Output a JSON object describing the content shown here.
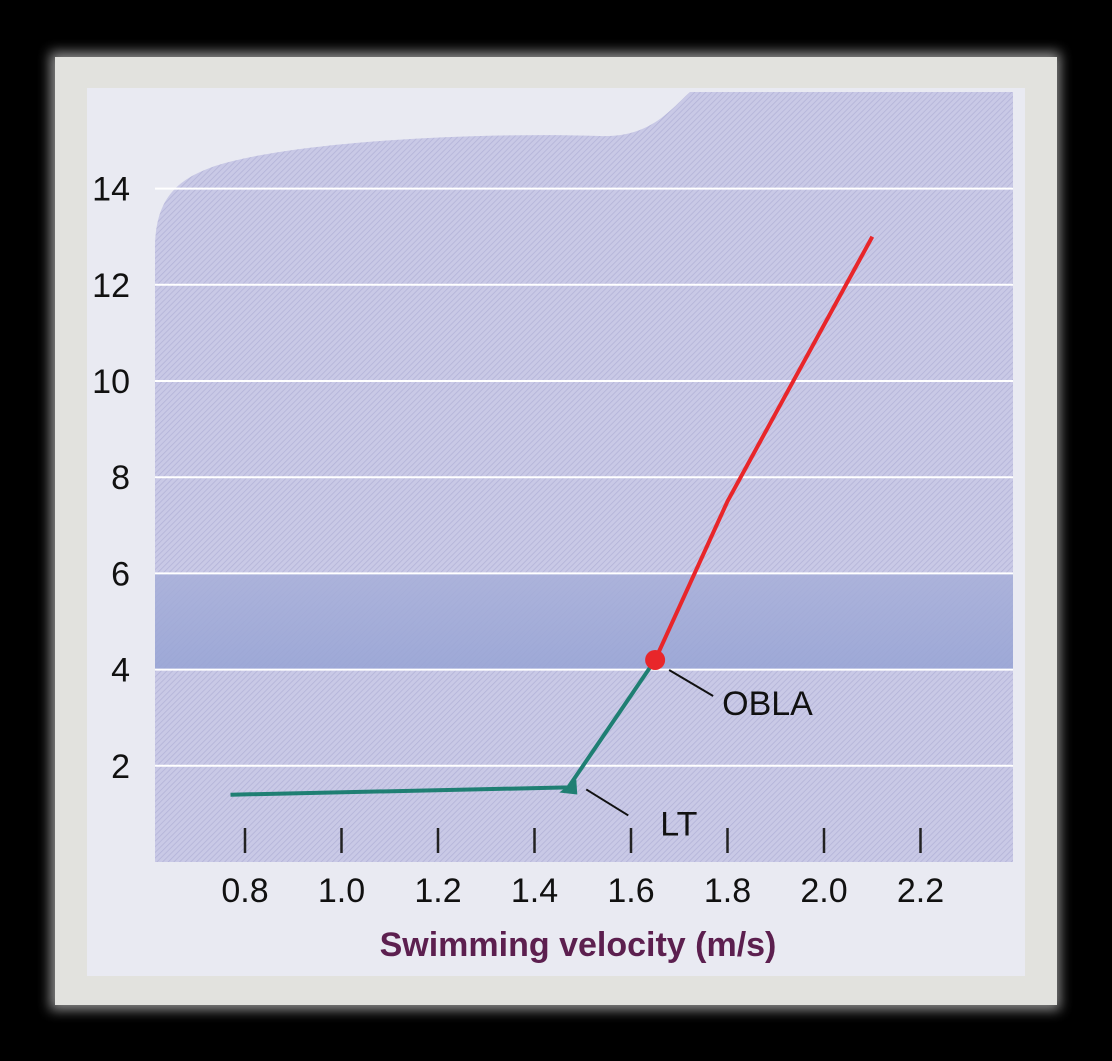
{
  "chart_data": {
    "type": "line",
    "title": "",
    "xlabel": "Swimming velocity (m/s)",
    "ylabel": "",
    "xlim": [
      0.72,
      2.3
    ],
    "ylim": [
      0,
      15
    ],
    "x_ticks": [
      0.8,
      1.0,
      1.2,
      1.4,
      1.6,
      1.8,
      2.0,
      2.2
    ],
    "x_tick_labels": [
      "0.8",
      "1.0",
      "1.2",
      "1.4",
      "1.6",
      "1.8",
      "2.0",
      "2.2"
    ],
    "y_ticks": [
      2,
      4,
      6,
      8,
      10,
      12,
      14
    ],
    "y_tick_labels": [
      "2",
      "4",
      "6",
      "8",
      "10",
      "12",
      "14"
    ],
    "grid": true,
    "highlight_band": [
      4,
      6
    ],
    "series": [
      {
        "color": "#1f7f73",
        "points": [
          [
            0.77,
            1.4
          ],
          [
            1.47,
            1.55
          ],
          [
            1.65,
            4.2
          ]
        ]
      },
      {
        "color": "#e8262a",
        "points": [
          [
            1.65,
            4.2
          ],
          [
            1.8,
            7.5
          ],
          [
            2.1,
            13.0
          ]
        ]
      }
    ],
    "markers": [
      {
        "x": 1.47,
        "y": 1.55,
        "shape": "triangle",
        "color": "#1f7f73",
        "label": "LT"
      },
      {
        "x": 1.65,
        "y": 4.2,
        "shape": "circle",
        "color": "#e8262a",
        "label": "OBLA"
      }
    ]
  }
}
